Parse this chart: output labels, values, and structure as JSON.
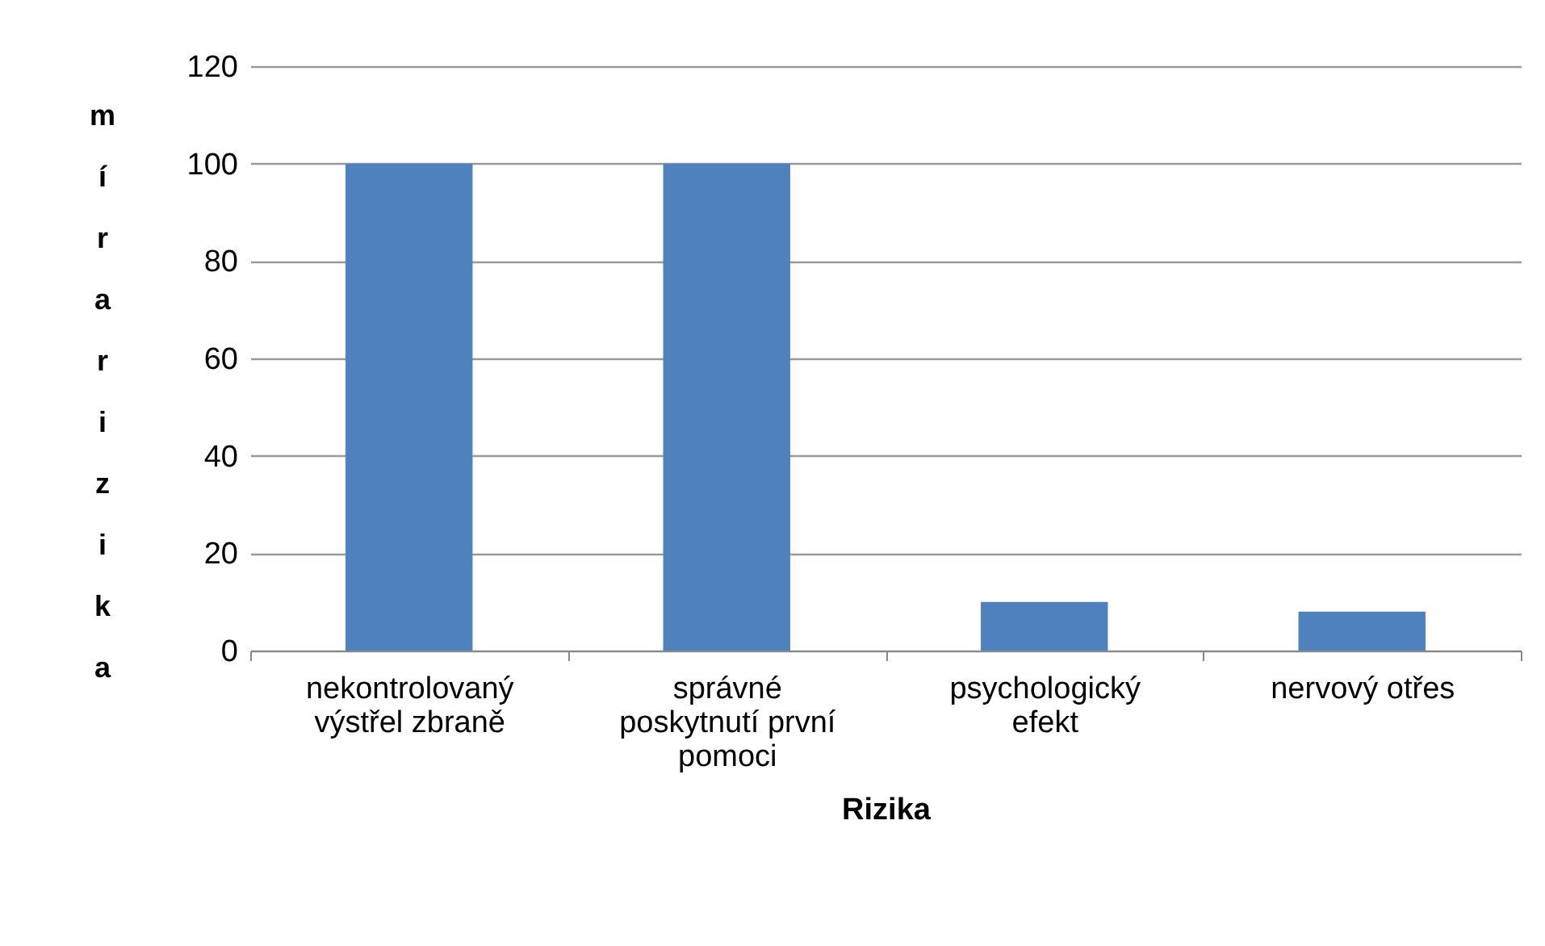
{
  "chart_data": {
    "type": "bar",
    "xlabel": "Rizika",
    "ylabel": "míra rizika",
    "categories": [
      "nekontrolovaný výstřel zbraně",
      "správné poskytnutí první pomoci",
      "psychologický efekt",
      "nervový otřes"
    ],
    "values": [
      100,
      100,
      10,
      8
    ],
    "color": "#4f81bd",
    "ylim": [
      0,
      120
    ],
    "yticks": [
      0,
      20,
      40,
      60,
      80,
      100,
      120
    ],
    "grid": "y"
  }
}
